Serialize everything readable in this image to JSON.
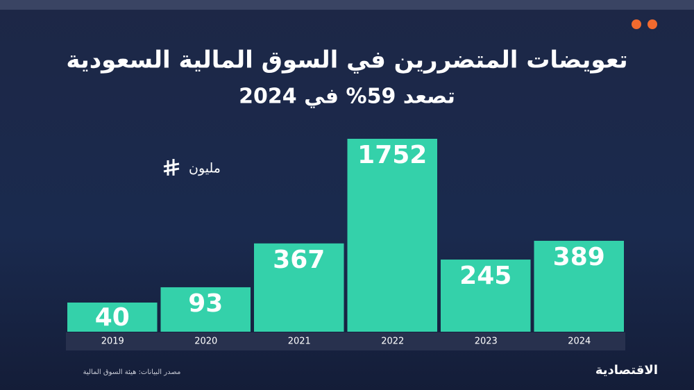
{
  "chart_data": {
    "type": "bar",
    "title": "تعويضات المتضررين في السوق المالية السعودية",
    "subtitle": "تصعد 59% في 2024",
    "unit": "مليون",
    "categories": [
      "2019",
      "2020",
      "2021",
      "2022",
      "2023",
      "2024"
    ],
    "values": [
      40,
      93,
      367,
      1752,
      245,
      389
    ],
    "color": "#34d1aa",
    "yscale": "sqrt",
    "source": "مصدر البيانات: هيئة السوق المالية",
    "brand": "الاقتصادية"
  }
}
